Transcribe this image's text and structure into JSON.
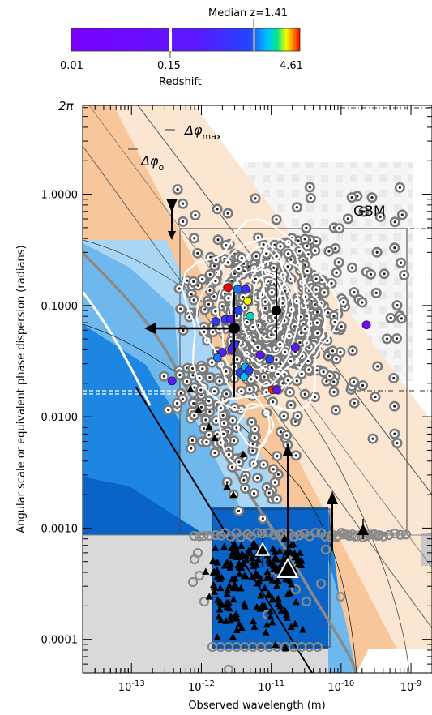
{
  "colorbar": {
    "title": "Median  z=1.41",
    "xlabel": "Redshift",
    "tick_labels": [
      "0.01",
      "0.15",
      "4.61"
    ],
    "scale_min": 0.01,
    "scale_max": 4.61,
    "markers": [
      0.15,
      1.41
    ],
    "colors": [
      "#7a00ff",
      "#5b18ff",
      "#2244ff",
      "#00c6ff",
      "#00e68a",
      "#f0ff00",
      "#ff8a00",
      "#ff0000"
    ]
  },
  "chart_data": {
    "type": "scatter",
    "title": "",
    "xlabel": "Observed wavelength (m)",
    "ylabel": "Angular scale or equivalent phase dispersion (radians)",
    "xscale": "log",
    "yscale": "log",
    "xlim": [
      2e-14,
      2e-09
    ],
    "ylim": [
      5e-05,
      6.2832
    ],
    "x_tick_labels": [
      "10^-13",
      "10^-12",
      "10^-11",
      "10^-10",
      "10^-9"
    ],
    "y_tick_labels": [
      "1.0000",
      "0.1000",
      "0.0100",
      "0.0010",
      "0.0001"
    ],
    "top_tick_label": "2π",
    "annotations": [
      {
        "text": "Δφ",
        "sub": "max",
        "x": 1.1e-13,
        "y": 3.3
      },
      {
        "text": "Δφ",
        "sub": "o",
        "x": 4e-14,
        "y": 1.75
      },
      {
        "text": "GBM",
        "x": 3.2e-10,
        "y": 0.82
      }
    ],
    "bands": [
      {
        "name": "band-light-peach",
        "color": "#fbe6d2",
        "offset": 0.0
      },
      {
        "name": "band-peach",
        "color": "#f7c69a",
        "offset": -0.55
      }
    ],
    "region_colors": {
      "dark_blue": "#0a64c8",
      "mid_blue": "#1d86e2",
      "light_blue": "#6fb8ee",
      "pale_blue": "#a9d6f5",
      "gray": "#d9d9d9"
    },
    "redshift_points": [
      {
        "x": 2.4e-12,
        "y": 0.145,
        "z": 4.61
      },
      {
        "x": 3.3e-12,
        "y": 0.14,
        "z": 1.41
      },
      {
        "x": 4.3e-12,
        "y": 0.14,
        "z": 0.6
      },
      {
        "x": 4.6e-12,
        "y": 0.11,
        "z": 3.2
      },
      {
        "x": 5e-12,
        "y": 0.08,
        "z": 2.2
      },
      {
        "x": 3.4e-12,
        "y": 0.09,
        "z": 1.2
      },
      {
        "x": 2.2e-12,
        "y": 0.075,
        "z": 0.9
      },
      {
        "x": 1.6e-12,
        "y": 0.072,
        "z": 0.8
      },
      {
        "x": 2.6e-12,
        "y": 0.075,
        "z": 0.25
      },
      {
        "x": 3e-12,
        "y": 0.045,
        "z": 0.9
      },
      {
        "x": 2.7e-12,
        "y": 0.04,
        "z": 0.3
      },
      {
        "x": 2e-12,
        "y": 0.038,
        "z": 0.35
      },
      {
        "x": 1.7e-12,
        "y": 0.034,
        "z": 1.5
      },
      {
        "x": 3.6e-12,
        "y": 0.025,
        "z": 1.2
      },
      {
        "x": 4.1e-12,
        "y": 0.023,
        "z": 1.9
      },
      {
        "x": 4.2e-12,
        "y": 0.028,
        "z": 1.8
      },
      {
        "x": 4.8e-12,
        "y": 0.026,
        "z": 1.1
      },
      {
        "x": 7e-12,
        "y": 0.036,
        "z": 0.15
      },
      {
        "x": 9.5e-12,
        "y": 0.033,
        "z": 1.2
      },
      {
        "x": 2.2e-11,
        "y": 0.042,
        "z": 0.15
      },
      {
        "x": 3.8e-13,
        "y": 0.021,
        "z": 0.3
      },
      {
        "x": 1.05e-11,
        "y": 0.0175,
        "z": 4.4
      },
      {
        "x": 1.2e-11,
        "y": 0.0175,
        "z": 0.2
      },
      {
        "x": 2.3e-10,
        "y": 0.067,
        "z": 0.02
      }
    ]
  }
}
